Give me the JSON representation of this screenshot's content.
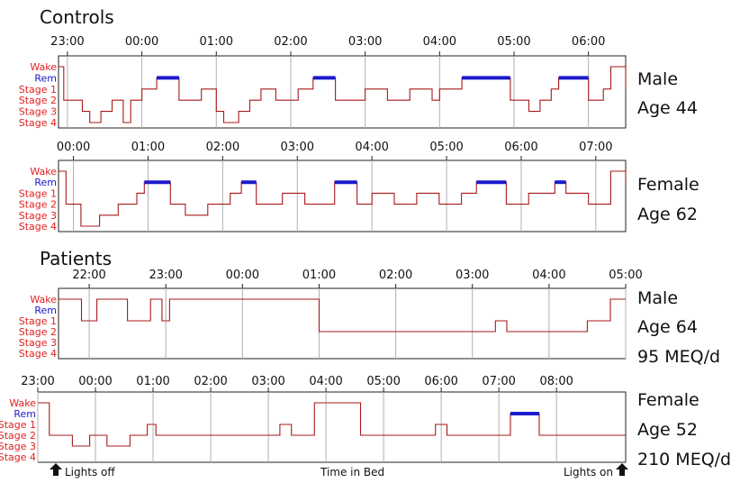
{
  "sections": {
    "controls": "Controls",
    "patients": "Patients"
  },
  "stage_labels": [
    "Wake",
    "Rem",
    "Stage 1",
    "Stage 2",
    "Stage 3",
    "Stage 4"
  ],
  "colors": {
    "wake": "#e0201f",
    "rem": "#1a1acc",
    "stage": "#e0201f",
    "trace": "#a8191a",
    "rem_bar": "#1a1acc",
    "grid": "#b0b0b0"
  },
  "footer": {
    "lights_off": "Lights off",
    "time_in_bed": "Time in Bed",
    "lights_on": "Lights on"
  },
  "chart_data": [
    {
      "type": "line",
      "group": "Controls",
      "info": [
        "Male",
        "Age 44"
      ],
      "x_ticks": [
        "23:00",
        "00:00",
        "01:00",
        "02:00",
        "03:00",
        "04:00",
        "05:00",
        "06:00"
      ],
      "x_range_hours": [
        22.88,
        30.5
      ],
      "y_levels": [
        "Wake",
        "Rem",
        "Stage 1",
        "Stage 2",
        "Stage 3",
        "Stage 4"
      ],
      "hypnogram": [
        [
          22.88,
          0
        ],
        [
          22.95,
          3
        ],
        [
          23.2,
          4
        ],
        [
          23.3,
          5
        ],
        [
          23.45,
          4
        ],
        [
          23.6,
          3
        ],
        [
          23.75,
          5
        ],
        [
          23.85,
          3
        ],
        [
          24.0,
          2
        ],
        [
          24.2,
          1
        ],
        [
          24.5,
          3
        ],
        [
          24.8,
          2
        ],
        [
          25.0,
          4
        ],
        [
          25.1,
          5
        ],
        [
          25.3,
          4
        ],
        [
          25.45,
          3
        ],
        [
          25.6,
          2
        ],
        [
          25.8,
          3
        ],
        [
          26.1,
          2
        ],
        [
          26.3,
          1
        ],
        [
          26.6,
          3
        ],
        [
          27.0,
          2
        ],
        [
          27.3,
          3
        ],
        [
          27.6,
          2
        ],
        [
          27.9,
          3
        ],
        [
          28.0,
          2
        ],
        [
          28.3,
          1
        ],
        [
          28.95,
          3
        ],
        [
          29.2,
          4
        ],
        [
          29.35,
          3
        ],
        [
          29.5,
          2
        ],
        [
          29.6,
          1
        ],
        [
          30.0,
          3
        ],
        [
          30.2,
          2
        ],
        [
          30.3,
          0
        ],
        [
          30.5,
          2
        ]
      ],
      "stage_levels": "0=Wake, 1=Rem, 2=Stage 1, 3=Stage 2, 4=Stage 3, 5=Stage 4"
    },
    {
      "type": "line",
      "group": "Controls",
      "info": [
        "Female",
        "Age 62"
      ],
      "x_ticks": [
        "00:00",
        "01:00",
        "02:00",
        "03:00",
        "04:00",
        "05:00",
        "06:00",
        "07:00"
      ],
      "x_range_hours": [
        23.8,
        31.4
      ],
      "y_levels": [
        "Wake",
        "Rem",
        "Stage 1",
        "Stage 2",
        "Stage 3",
        "Stage 4"
      ],
      "hypnogram": [
        [
          23.8,
          0
        ],
        [
          23.9,
          3
        ],
        [
          24.1,
          5
        ],
        [
          24.35,
          4
        ],
        [
          24.6,
          3
        ],
        [
          24.85,
          2
        ],
        [
          24.95,
          1
        ],
        [
          25.3,
          3
        ],
        [
          25.5,
          4
        ],
        [
          25.8,
          3
        ],
        [
          26.1,
          2
        ],
        [
          26.25,
          1
        ],
        [
          26.45,
          3
        ],
        [
          26.8,
          2
        ],
        [
          27.1,
          3
        ],
        [
          27.5,
          1
        ],
        [
          27.8,
          3
        ],
        [
          28.0,
          2
        ],
        [
          28.3,
          3
        ],
        [
          28.6,
          2
        ],
        [
          28.9,
          3
        ],
        [
          29.2,
          2
        ],
        [
          29.4,
          1
        ],
        [
          29.8,
          3
        ],
        [
          30.1,
          2
        ],
        [
          30.45,
          1
        ],
        [
          30.6,
          2
        ],
        [
          30.9,
          3
        ],
        [
          31.2,
          0
        ],
        [
          31.4,
          1
        ]
      ],
      "stage_levels": "0=Wake, 1=Rem, 2=Stage 1, 3=Stage 2, 4=Stage 3, 5=Stage 4"
    },
    {
      "type": "line",
      "group": "Patients",
      "info": [
        "Male",
        "Age 64",
        "95 MEQ/d"
      ],
      "x_ticks": [
        "22:00",
        "23:00",
        "00:00",
        "01:00",
        "02:00",
        "03:00",
        "04:00",
        "05:00"
      ],
      "x_range_hours": [
        21.6,
        29.0
      ],
      "y_levels": [
        "Wake",
        "Rem",
        "Stage 1",
        "Stage 2",
        "Stage 3",
        "Stage 4"
      ],
      "hypnogram": [
        [
          21.6,
          0
        ],
        [
          21.9,
          2
        ],
        [
          22.1,
          0
        ],
        [
          22.5,
          2
        ],
        [
          22.8,
          0
        ],
        [
          22.95,
          2
        ],
        [
          23.05,
          0
        ],
        [
          24.9,
          0
        ],
        [
          25.0,
          3
        ],
        [
          27.3,
          2
        ],
        [
          27.45,
          3
        ],
        [
          28.5,
          2
        ],
        [
          28.8,
          0
        ],
        [
          29.0,
          0
        ]
      ],
      "stage_levels": "0=Wake, 1=Rem, 2=Stage 1, 3=Stage 2, 4=Stage 3, 5=Stage 4"
    },
    {
      "type": "line",
      "group": "Patients",
      "info": [
        "Female",
        "Age 52",
        "210 MEQ/d"
      ],
      "x_ticks": [
        "23:00",
        "00:00",
        "01:00",
        "02:00",
        "03:00",
        "04:00",
        "05:00",
        "06:00",
        "07:00",
        "08:00"
      ],
      "x_range_hours": [
        23.0,
        33.2
      ],
      "y_levels": [
        "Wake",
        "Rem",
        "Stage 1",
        "Stage 2",
        "Stage 3",
        "Stage 4"
      ],
      "hypnogram": [
        [
          23.0,
          0
        ],
        [
          23.2,
          3
        ],
        [
          23.6,
          4
        ],
        [
          23.9,
          3
        ],
        [
          24.2,
          4
        ],
        [
          24.6,
          3
        ],
        [
          24.9,
          2
        ],
        [
          25.05,
          3
        ],
        [
          26.9,
          3
        ],
        [
          27.2,
          2
        ],
        [
          27.4,
          3
        ],
        [
          27.8,
          0
        ],
        [
          28.6,
          3
        ],
        [
          29.9,
          2
        ],
        [
          30.1,
          3
        ],
        [
          31.2,
          1
        ],
        [
          31.7,
          3
        ],
        [
          33.2,
          3
        ]
      ],
      "stage_levels": "0=Wake, 1=Rem, 2=Stage 1, 3=Stage 2, 4=Stage 3, 5=Stage 4"
    }
  ]
}
